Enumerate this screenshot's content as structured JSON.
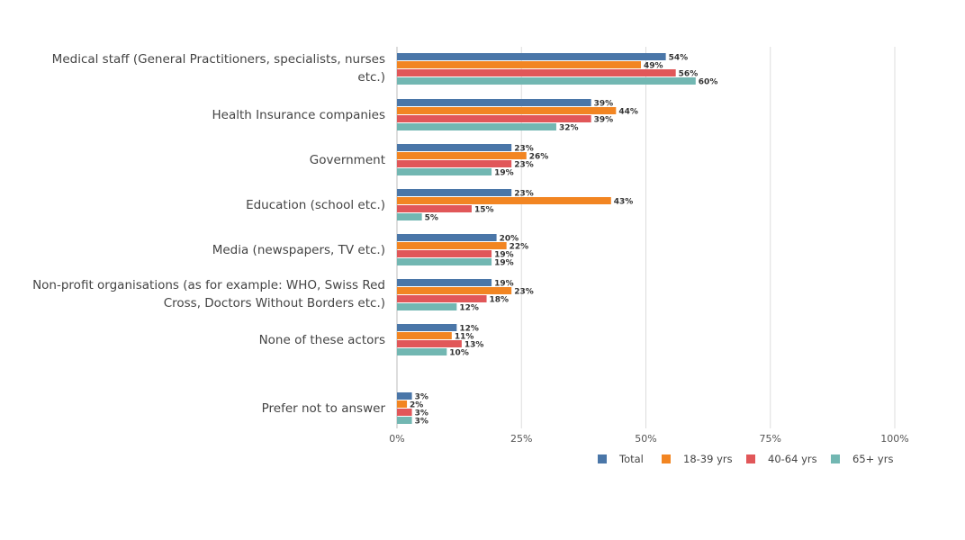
{
  "chart_data": {
    "type": "bar",
    "orientation": "horizontal",
    "categories": [
      [
        "Medical staff (General Practitioners, specialists, nurses",
        "etc.)"
      ],
      [
        "Health Insurance companies"
      ],
      [
        "Government"
      ],
      [
        "Education (school etc.)"
      ],
      [
        "Media (newspapers, TV etc.)"
      ],
      [
        "Non-profit organisations (as for example: WHO, Swiss Red",
        "Cross, Doctors Without Borders etc.)"
      ],
      [
        "None of these actors"
      ],
      [
        "Prefer not to answer"
      ]
    ],
    "series": [
      {
        "name": "Total",
        "color": "#4a76a8",
        "values": [
          54,
          39,
          23,
          23,
          20,
          19,
          12,
          3
        ]
      },
      {
        "name": "18-39 yrs",
        "color": "#f28522",
        "values": [
          49,
          44,
          26,
          43,
          22,
          23,
          11,
          2
        ]
      },
      {
        "name": "40-64 yrs",
        "color": "#e15759",
        "values": [
          56,
          39,
          23,
          15,
          19,
          18,
          13,
          3
        ]
      },
      {
        "name": "65+ yrs",
        "color": "#72b7b2",
        "values": [
          60,
          32,
          19,
          5,
          19,
          12,
          10,
          3
        ]
      }
    ],
    "value_suffix": "%",
    "xlim": [
      0,
      100
    ],
    "x_ticks": [
      "0%",
      "25%",
      "50%",
      "75%",
      "100%"
    ],
    "grid": true,
    "legend_position": "bottom-right",
    "title": "",
    "xlabel": "",
    "ylabel": ""
  }
}
